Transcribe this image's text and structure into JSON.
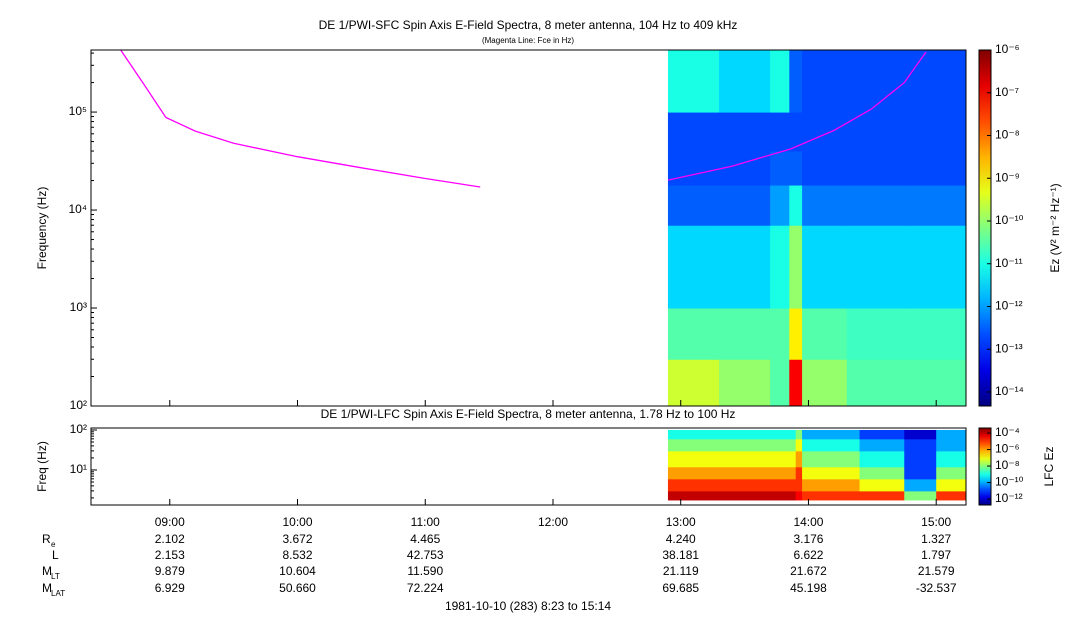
{
  "chart_data": [
    {
      "type": "spectrogram",
      "title": "DE 1/PWI-SFC  Spin Axis E-Field Spectra, 8 meter antenna, 104 Hz to 409 kHz",
      "subtitle": "(Magenta Line: Fce in Hz)",
      "ylabel": "Frequency (Hz)",
      "log_y": true,
      "xlim": [
        8.3833,
        15.2333
      ],
      "xticks": [
        9,
        10,
        11,
        12,
        13,
        14,
        15
      ],
      "ylim": [
        100,
        430000
      ],
      "yticks": [
        {
          "value": 100,
          "label": "10²"
        },
        {
          "value": 1000,
          "label": "10³"
        },
        {
          "value": 10000,
          "label": "10⁴"
        },
        {
          "value": 100000,
          "label": "10⁵"
        }
      ],
      "zlabel": "Ez (V² m⁻² Hz⁻¹)",
      "zlim": [
        4.7e-15,
        1e-06
      ],
      "zticks": [
        {
          "value": 1e-06,
          "label": "10⁻⁶"
        },
        {
          "value": 1e-07,
          "label": "10⁻⁷"
        },
        {
          "value": 1e-08,
          "label": "10⁻⁸"
        },
        {
          "value": 1e-09,
          "label": "10⁻⁹"
        },
        {
          "value": 1e-10,
          "label": "10⁻¹⁰"
        },
        {
          "value": 1e-11,
          "label": "10⁻¹¹"
        },
        {
          "value": 1e-12,
          "label": "10⁻¹²"
        },
        {
          "value": 1e-13,
          "label": "10⁻¹³"
        },
        {
          "value": 1e-14,
          "label": "10⁻¹⁴"
        }
      ],
      "series": [
        {
          "name": "Fce",
          "color": "#ff00ff",
          "x": [
            8.616,
            8.8,
            8.97,
            9.2,
            9.5,
            10,
            10.5,
            11,
            11.43,
            12,
            12.9,
            13.4,
            13.86,
            14.2,
            14.49,
            14.75,
            14.92
          ],
          "values": [
            430000,
            190000,
            88000,
            64000,
            48000,
            35000,
            27000,
            21000,
            17200,
            null,
            20200,
            28000,
            42000,
            65000,
            107000,
            200000,
            410000
          ]
        }
      ],
      "spectrogram": {
        "x_edges": [
          12.9,
          13.3,
          13.7,
          13.85,
          13.95,
          14.3,
          14.8,
          15.2333
        ],
        "y_edges": [
          100,
          300,
          1000,
          7000,
          18000,
          40000,
          100000,
          430000
        ],
        "values": [
          [
            3e-10,
            1e-10,
            3e-11,
            1e-07,
            1e-10,
            3e-11,
            3e-11
          ],
          [
            3e-11,
            3e-11,
            3e-11,
            1e-09,
            3e-11,
            2e-11,
            2e-11
          ],
          [
            3e-12,
            3e-12,
            1e-11,
            1e-10,
            3e-12,
            3e-12,
            3e-12
          ],
          [
            3e-13,
            3e-13,
            1e-12,
            1e-11,
            5e-13,
            5e-13,
            5e-13
          ],
          [
            2e-13,
            2e-13,
            3e-13,
            3e-13,
            2e-13,
            2e-13,
            2e-13
          ],
          [
            2e-13,
            2e-13,
            2e-13,
            2e-13,
            2e-13,
            2e-13,
            2e-13
          ],
          [
            1e-11,
            3e-12,
            1e-11,
            3e-13,
            2e-13,
            2e-13,
            2e-13
          ]
        ]
      }
    },
    {
      "type": "spectrogram",
      "title": "DE 1/PWI-LFC  Spin Axis E-Field Spectra, 8 meter antenna, 1.78 Hz to 100 Hz",
      "ylabel": "Freq (Hz)",
      "log_y": true,
      "xlim": [
        8.3833,
        15.2333
      ],
      "xticks": [
        {
          "value": 9,
          "label": "09:00"
        },
        {
          "value": 10,
          "label": "10:00"
        },
        {
          "value": 11,
          "label": "11:00"
        },
        {
          "value": 12,
          "label": "12:00"
        },
        {
          "value": 13,
          "label": "13:00"
        },
        {
          "value": 14,
          "label": "14:00"
        },
        {
          "value": 15,
          "label": "15:00"
        }
      ],
      "ylim": [
        1.33,
        112
      ],
      "yticks": [
        {
          "value": 10,
          "label": "10¹"
        },
        {
          "value": 100,
          "label": "10²"
        }
      ],
      "zlabel": "LFC Ez",
      "zlim": [
        1.9e-13,
        0.00041
      ],
      "zticks": [
        {
          "value": 0.0001,
          "label": "10⁻⁴"
        },
        {
          "value": 1e-06,
          "label": "10⁻⁶"
        },
        {
          "value": 1e-08,
          "label": "10⁻⁸"
        },
        {
          "value": 1e-10,
          "label": "10⁻¹⁰"
        },
        {
          "value": 1e-12,
          "label": "10⁻¹²"
        }
      ],
      "spectrogram": {
        "x_edges": [
          12.9,
          13.9,
          13.95,
          14.4,
          14.75,
          15.0,
          15.2333
        ],
        "y_edges": [
          1.78,
          3,
          6,
          12,
          30,
          60,
          100
        ],
        "values": [
          [
            0.0001,
            3e-05,
            1e-05,
            1e-05,
            1e-08,
            1e-05
          ],
          [
            1e-05,
            1e-05,
            1e-06,
            1e-07,
            1e-10,
            1e-07
          ],
          [
            1e-06,
            1e-05,
            1e-07,
            1e-08,
            1e-11,
            1e-08
          ],
          [
            1e-07,
            1e-06,
            1e-08,
            1e-09,
            1e-11,
            1e-09
          ],
          [
            1e-08,
            1e-07,
            1e-09,
            1e-10,
            1e-11,
            1e-10
          ],
          [
            1e-09,
            1e-08,
            1e-10,
            1e-11,
            1e-12,
            1e-10
          ]
        ]
      }
    }
  ],
  "ephemeris": {
    "rows": [
      {
        "label": "R",
        "sub": "e",
        "values": [
          "2.102",
          "3.672",
          "4.465",
          null,
          "4.240",
          "3.176",
          "1.327"
        ]
      },
      {
        "label": "L",
        "values": [
          "2.153",
          "8.532",
          "42.753",
          null,
          "38.181",
          "6.622",
          "1.797"
        ]
      },
      {
        "label": "M",
        "sub": "LT",
        "values": [
          "9.879",
          "10.604",
          "11.590",
          null,
          "21.119",
          "21.672",
          "21.579"
        ]
      },
      {
        "label": "M",
        "sub": "LAT",
        "values": [
          "6.929",
          "50.660",
          "72.224",
          null,
          "69.685",
          "45.198",
          "-32.537"
        ]
      }
    ]
  },
  "footer": "1981-10-10 (283) 8:23 to 15:14"
}
